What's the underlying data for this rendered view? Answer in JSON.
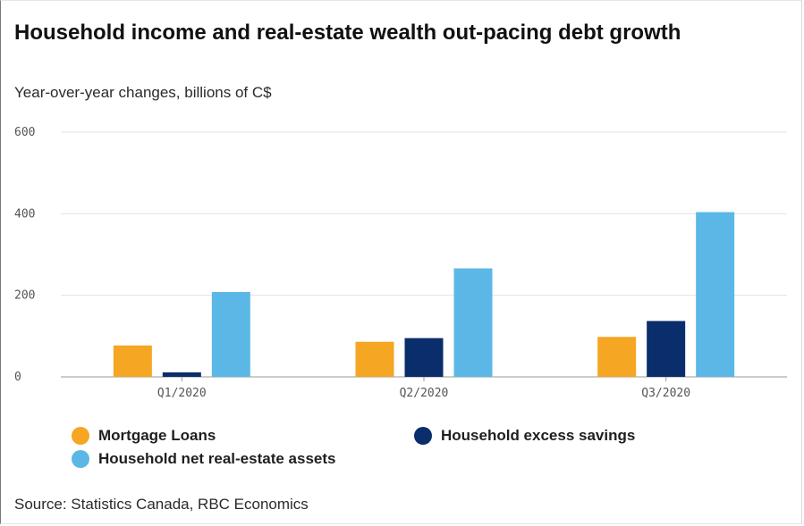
{
  "colors": {
    "mortgage": "#f5a623",
    "savings": "#0a2d6b",
    "assets": "#5bb8e6",
    "grid": "#e3e3e3",
    "axis": "#9a9a9a"
  },
  "chart_data": {
    "type": "bar",
    "title": "Household income and real-estate wealth out-pacing debt growth",
    "subtitle": "Year-over-year changes, billions of C$",
    "xlabel": "",
    "ylabel": "",
    "ylim": [
      0,
      600
    ],
    "yticks": [
      0,
      200,
      400,
      600
    ],
    "categories": [
      "Q1/2020",
      "Q2/2020",
      "Q3/2020"
    ],
    "series": [
      {
        "name": "Mortgage Loans",
        "key": "mortgage",
        "values": [
          77,
          86,
          98
        ]
      },
      {
        "name": "Household excess savings",
        "key": "savings",
        "values": [
          11,
          95,
          137
        ]
      },
      {
        "name": "Household net real-estate assets",
        "key": "assets",
        "values": [
          208,
          266,
          404
        ]
      }
    ],
    "grid": true,
    "legend": "bottom"
  },
  "source": "Source: Statistics Canada, RBC Economics"
}
